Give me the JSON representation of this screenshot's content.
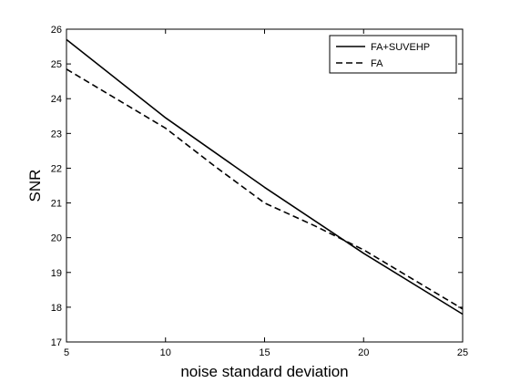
{
  "chart_data": {
    "type": "line",
    "xlabel": "noise standard deviation",
    "ylabel": "SNR",
    "xlim": [
      5,
      25
    ],
    "ylim": [
      17,
      26
    ],
    "xticks": [
      5,
      10,
      15,
      20,
      25
    ],
    "yticks": [
      17,
      18,
      19,
      20,
      21,
      22,
      23,
      24,
      25,
      26
    ],
    "grid": false,
    "legend_position": "top-right",
    "series": [
      {
        "name": "FA+SUVEHP",
        "line_style": "solid",
        "color": "#000000",
        "x": [
          5,
          10,
          15,
          20,
          25
        ],
        "y": [
          25.7,
          23.45,
          21.45,
          19.55,
          17.8
        ]
      },
      {
        "name": "FA",
        "line_style": "dashed",
        "color": "#000000",
        "x": [
          5,
          10,
          12.5,
          15,
          17.5,
          20,
          25
        ],
        "y": [
          24.85,
          23.15,
          22.05,
          21.0,
          20.35,
          19.65,
          17.95
        ]
      }
    ]
  }
}
